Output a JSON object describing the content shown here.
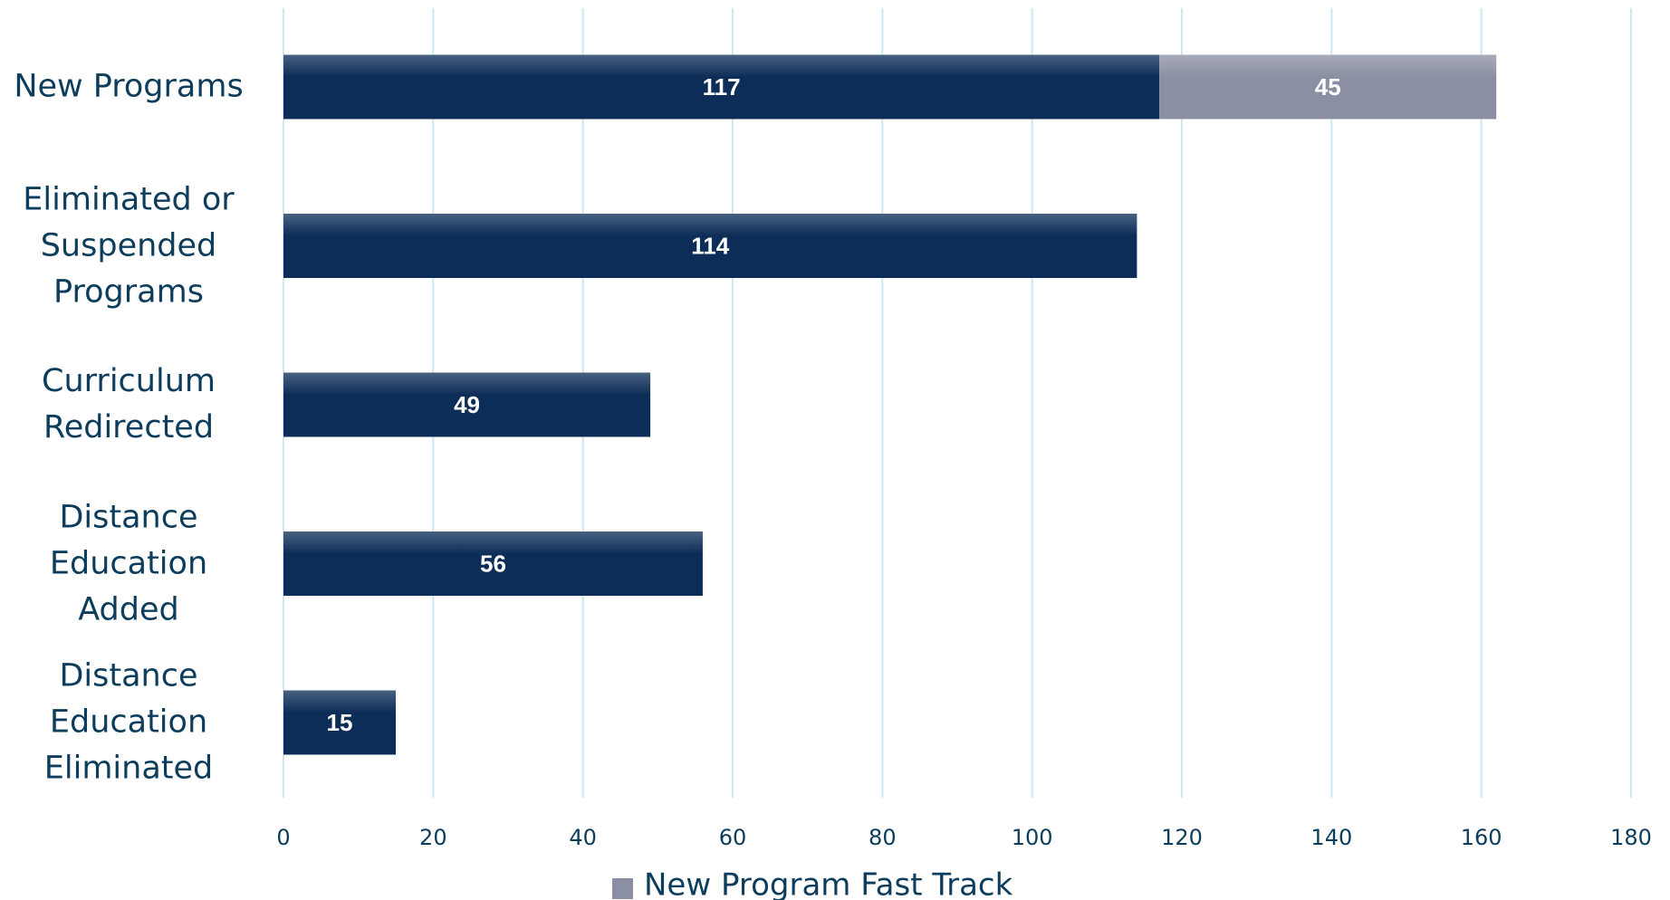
{
  "chart_data": {
    "type": "bar",
    "orientation": "horizontal",
    "stacked": true,
    "categories": [
      "New Programs",
      "Eliminated or Suspended Programs",
      "Curriculum Redirected",
      "Distance Education Added",
      "Distance Education Eliminated"
    ],
    "series": [
      {
        "color": "#0c2d57",
        "values": [
          117,
          114,
          49,
          56,
          15
        ]
      },
      {
        "name": "New Program Fast Track",
        "color": "#8a8fa3",
        "values": [
          45,
          null,
          null,
          null,
          null
        ]
      }
    ],
    "xlim": [
      0,
      180
    ],
    "xticks": [
      0,
      20,
      40,
      60,
      80,
      100,
      120,
      140,
      160,
      180
    ],
    "grid": true,
    "legend": "bottom"
  }
}
